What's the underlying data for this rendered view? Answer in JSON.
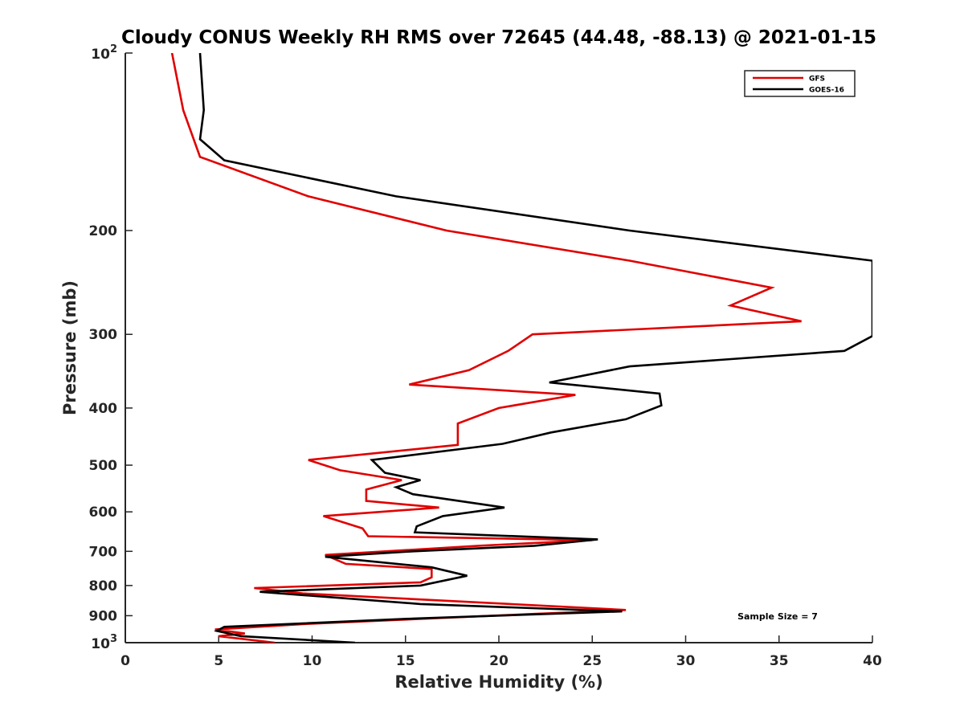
{
  "chart_data": {
    "type": "line",
    "title": "Cloudy CONUS Weekly RH RMS over 72645 (44.48, -88.13) @ 2021-01-15",
    "xlabel": "Relative Humidity (%)",
    "ylabel": "Pressure (mb)",
    "xlim": [
      0,
      40
    ],
    "ylim": [
      100,
      1000
    ],
    "yscale": "log",
    "y_reversed": true,
    "x_ticks": [
      "0",
      "5",
      "10",
      "15",
      "20",
      "25",
      "30",
      "35",
      "40"
    ],
    "y_ticks": [
      {
        "value": 100,
        "base": "10",
        "exp": "2"
      },
      {
        "value": 200,
        "label": "200"
      },
      {
        "value": 300,
        "label": "300"
      },
      {
        "value": 400,
        "label": "400"
      },
      {
        "value": 500,
        "label": "500"
      },
      {
        "value": 600,
        "label": "600"
      },
      {
        "value": 700,
        "label": "700"
      },
      {
        "value": 800,
        "label": "800"
      },
      {
        "value": 900,
        "label": "900"
      },
      {
        "value": 1000,
        "base": "10",
        "exp": "3"
      }
    ],
    "grid": false,
    "legend_position": "top-right",
    "annotation": "Sample Size = 7",
    "series": [
      {
        "name": "GFS",
        "color": "#e00000",
        "points": [
          [
            2.5,
            100
          ],
          [
            3.1,
            125
          ],
          [
            4.0,
            150
          ],
          [
            9.8,
            175
          ],
          [
            17.2,
            200
          ],
          [
            27.0,
            225
          ],
          [
            34.6,
            250
          ],
          [
            32.4,
            268
          ],
          [
            36.2,
            285
          ],
          [
            21.8,
            300
          ],
          [
            20.5,
            320
          ],
          [
            18.4,
            345
          ],
          [
            15.2,
            365
          ],
          [
            24.1,
            380
          ],
          [
            20.0,
            400
          ],
          [
            17.8,
            425
          ],
          [
            17.8,
            462
          ],
          [
            9.8,
            490
          ],
          [
            11.5,
            510
          ],
          [
            14.8,
            530
          ],
          [
            12.9,
            550
          ],
          [
            12.9,
            575
          ],
          [
            16.8,
            590
          ],
          [
            10.6,
            610
          ],
          [
            12.7,
            640
          ],
          [
            13.0,
            660
          ],
          [
            25.0,
            670
          ],
          [
            18.9,
            685
          ],
          [
            10.7,
            710
          ],
          [
            11.8,
            735
          ],
          [
            16.4,
            750
          ],
          [
            16.4,
            775
          ],
          [
            15.8,
            790
          ],
          [
            6.9,
            808
          ],
          [
            9.5,
            825
          ],
          [
            26.8,
            880
          ],
          [
            21.5,
            895
          ],
          [
            9.5,
            930
          ],
          [
            4.8,
            950
          ],
          [
            6.4,
            965
          ],
          [
            5.0,
            975
          ],
          [
            8.0,
            1000
          ]
        ]
      },
      {
        "name": "GOES-16",
        "color": "#000000",
        "points": [
          [
            4.0,
            100
          ],
          [
            4.2,
            125
          ],
          [
            4.0,
            140
          ],
          [
            5.3,
            152
          ],
          [
            14.5,
            175
          ],
          [
            27.0,
            200
          ],
          [
            37.5,
            220
          ],
          [
            40.0,
            225
          ],
          [
            40.0,
            302
          ],
          [
            38.5,
            320
          ],
          [
            27.0,
            340
          ],
          [
            22.7,
            362
          ],
          [
            28.6,
            378
          ],
          [
            28.7,
            396
          ],
          [
            26.8,
            418
          ],
          [
            22.8,
            440
          ],
          [
            20.2,
            460
          ],
          [
            13.2,
            490
          ],
          [
            13.9,
            515
          ],
          [
            15.8,
            530
          ],
          [
            14.5,
            545
          ],
          [
            15.4,
            560
          ],
          [
            20.3,
            590
          ],
          [
            17.0,
            610
          ],
          [
            15.6,
            635
          ],
          [
            15.5,
            650
          ],
          [
            25.3,
            668
          ],
          [
            21.9,
            685
          ],
          [
            15.4,
            700
          ],
          [
            10.7,
            715
          ],
          [
            16.4,
            745
          ],
          [
            18.3,
            770
          ],
          [
            15.8,
            800
          ],
          [
            7.2,
            820
          ],
          [
            15.8,
            860
          ],
          [
            26.6,
            885
          ],
          [
            15.5,
            910
          ],
          [
            5.3,
            940
          ],
          [
            4.9,
            955
          ],
          [
            6.2,
            975
          ],
          [
            12.3,
            1000
          ]
        ]
      }
    ]
  }
}
